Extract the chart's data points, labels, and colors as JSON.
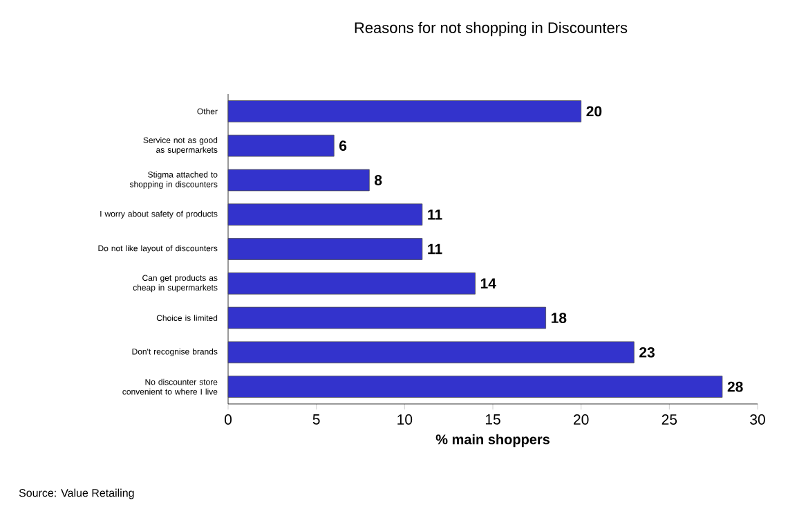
{
  "chart_data": {
    "type": "bar",
    "orientation": "horizontal",
    "title": "Reasons for not shopping in Discounters",
    "xlabel": "% main shoppers",
    "categories": [
      "Other",
      "Service not as good as supermarkets",
      "Stigma attached to shopping in discounters",
      "I worry about safety of products",
      "Do not like layout of discounters",
      "Can get products as cheap in supermarkets",
      "Choice is limited",
      "Don't recognise brands",
      "No discounter store convenient to where I live"
    ],
    "values": [
      20,
      6,
      8,
      11,
      11,
      14,
      18,
      23,
      28
    ],
    "color": "#3333cc",
    "xlim": [
      0,
      30
    ],
    "xticks": [
      0,
      5,
      10,
      15,
      20,
      25,
      30
    ],
    "data_labels": true,
    "annotations": [
      "Source: Value Retailing"
    ]
  }
}
